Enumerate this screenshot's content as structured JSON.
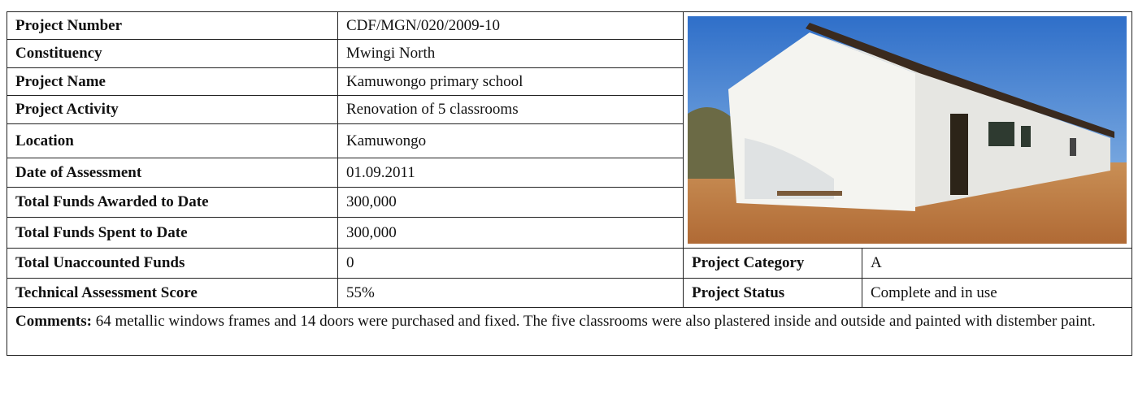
{
  "rows": [
    [
      "Project Number",
      "CDF/MGN/020/2009-10"
    ],
    [
      "Constituency",
      "Mwingi North"
    ],
    [
      "Project Name",
      "Kamuwongo primary school"
    ],
    [
      "Project Activity",
      "Renovation of 5 classrooms"
    ],
    [
      "Location",
      "Kamuwongo"
    ],
    [
      "Date of Assessment",
      "01.09.2011"
    ],
    [
      "Total Funds Awarded to Date",
      "300,000"
    ],
    [
      "Total Funds Spent to Date",
      "300,000"
    ],
    [
      "Total Unaccounted Funds",
      "0"
    ],
    [
      "Technical Assessment Score",
      "55%"
    ]
  ],
  "category": {
    "label": "Project Category",
    "value": "A"
  },
  "status": {
    "label": "Project Status",
    "value": "Complete and in use"
  },
  "comments": {
    "label": "Comments:",
    "text": "64 metallic windows frames and 14 doors were purchased and fixed. The five classrooms were also plastered inside and outside and painted with distember paint."
  }
}
